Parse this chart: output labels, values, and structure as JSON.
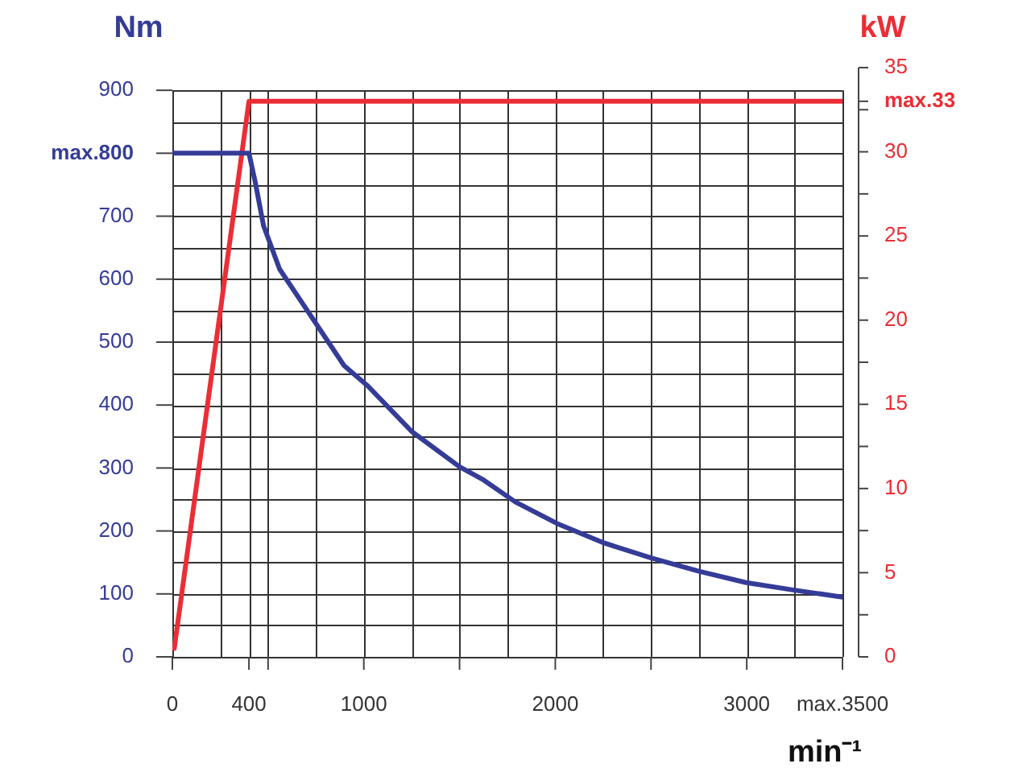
{
  "chart_data": {
    "type": "line",
    "xlabel": "min⁻¹",
    "ylabel": "Nm",
    "y2label": "kW",
    "series": [
      {
        "color": "#353c97",
        "x": [
          0,
          400,
          433,
          476,
          560,
          672,
          784,
          896,
          1022,
          1250,
          1500,
          1625,
          1792,
          2008,
          2254,
          2501,
          2750,
          2997,
          3249,
          3500
        ],
        "values": [
          800,
          800,
          754,
          685,
          616,
          565,
          514,
          463,
          430,
          358,
          302,
          281,
          246,
          212,
          181,
          157,
          136,
          118,
          106,
          95
        ]
      },
      {
        "color": "#ec2d35",
        "axis": "y2",
        "x": [
          10,
          400,
          3500
        ],
        "values": [
          0.5,
          33,
          33
        ]
      }
    ],
    "xlim": [
      0,
      3500
    ],
    "xticks": [
      0,
      {
        "value": 250,
        "label": null
      },
      400,
      {
        "value": 500,
        "label": null
      },
      {
        "value": 750,
        "label": null
      },
      1000,
      {
        "value": 1250,
        "label": null
      },
      {
        "value": 1500,
        "label": null
      },
      {
        "value": 1750,
        "label": null
      },
      2000,
      {
        "value": 2250,
        "label": null
      },
      {
        "value": 2500,
        "label": null
      },
      {
        "value": 2750,
        "label": null
      },
      3000,
      {
        "value": 3250,
        "label": null
      },
      {
        "value": 3500,
        "label": "max.3500"
      }
    ],
    "ylim": [
      0,
      936
    ],
    "yticks": [
      0,
      {
        "value": 50,
        "label": null
      },
      100,
      {
        "value": 150,
        "label": null
      },
      200,
      {
        "value": 250,
        "label": null
      },
      300,
      {
        "value": 350,
        "label": null
      },
      400,
      {
        "value": 450,
        "label": null
      },
      500,
      {
        "value": 550,
        "label": null
      },
      600,
      {
        "value": 650,
        "label": null
      },
      700,
      {
        "value": 750,
        "label": null
      },
      {
        "value": 800,
        "label": "max.800"
      },
      {
        "value": 850,
        "label": null
      },
      900
    ],
    "y2lim": [
      0,
      35
    ],
    "y2ticks": [
      0,
      {
        "value": 2.5,
        "label": null
      },
      5,
      {
        "value": 7.5,
        "label": null
      },
      10,
      {
        "value": 12.5,
        "label": null
      },
      15,
      {
        "value": 17.5,
        "label": null
      },
      20,
      {
        "value": 22.5,
        "label": null
      },
      25,
      {
        "value": 27.5,
        "label": null
      },
      30,
      {
        "value": 32.5,
        "label": null
      },
      {
        "value": 33,
        "label": "max.33"
      },
      35
    ],
    "grid": true,
    "legend": false,
    "marker": "none",
    "line_style": "solid"
  }
}
